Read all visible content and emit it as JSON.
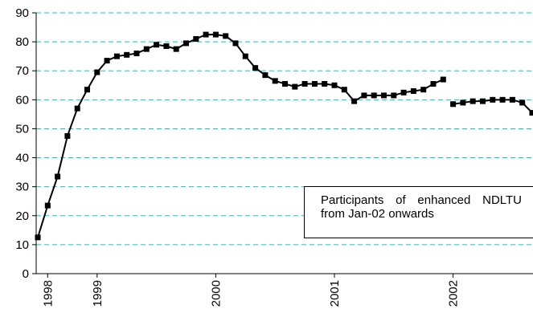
{
  "chart_data": {
    "type": "line",
    "categories": [
      null,
      "1998",
      null,
      null,
      null,
      null,
      "1999",
      null,
      null,
      null,
      null,
      null,
      null,
      null,
      null,
      null,
      null,
      null,
      "2000",
      null,
      null,
      null,
      null,
      null,
      null,
      null,
      null,
      null,
      null,
      null,
      "2001",
      null,
      null,
      null,
      null,
      null,
      null,
      null,
      null,
      null,
      null,
      null,
      "2002",
      null,
      null,
      null,
      null,
      null,
      null,
      null,
      null
    ],
    "series": [
      {
        "color": "#000000",
        "values": [
          12.5,
          23.5,
          33.5,
          47.5,
          57,
          63.5,
          69.5,
          73.5,
          75,
          75.5,
          76,
          77.5,
          79,
          78.5,
          77.5,
          79.5,
          81,
          82.5,
          82.5,
          82,
          79.5,
          75,
          71,
          68.5,
          66.5,
          65.5,
          64.5,
          65.5,
          65.5,
          65.5,
          65,
          63.5,
          59.5,
          61.5,
          61.5,
          61.5,
          61.5,
          62.5,
          63,
          63.5,
          65.5,
          67,
          null,
          null,
          null,
          null,
          null,
          null,
          null,
          null,
          null
        ]
      },
      {
        "color": "#000000",
        "values": [
          null,
          null,
          null,
          null,
          null,
          null,
          null,
          null,
          null,
          null,
          null,
          null,
          null,
          null,
          null,
          null,
          null,
          null,
          null,
          null,
          null,
          null,
          null,
          null,
          null,
          null,
          null,
          null,
          null,
          null,
          null,
          null,
          null,
          null,
          null,
          null,
          null,
          null,
          null,
          null,
          null,
          null,
          58.5,
          59,
          59.5,
          59.5,
          60,
          60,
          60,
          59,
          55.5
        ]
      }
    ],
    "ylim": [
      0,
      90
    ],
    "yticks": [
      0,
      10,
      20,
      30,
      40,
      50,
      60,
      70,
      80,
      90
    ],
    "grid": true,
    "annotation": "Participants of enhanced NDLTU from Jan-02 onwards"
  }
}
